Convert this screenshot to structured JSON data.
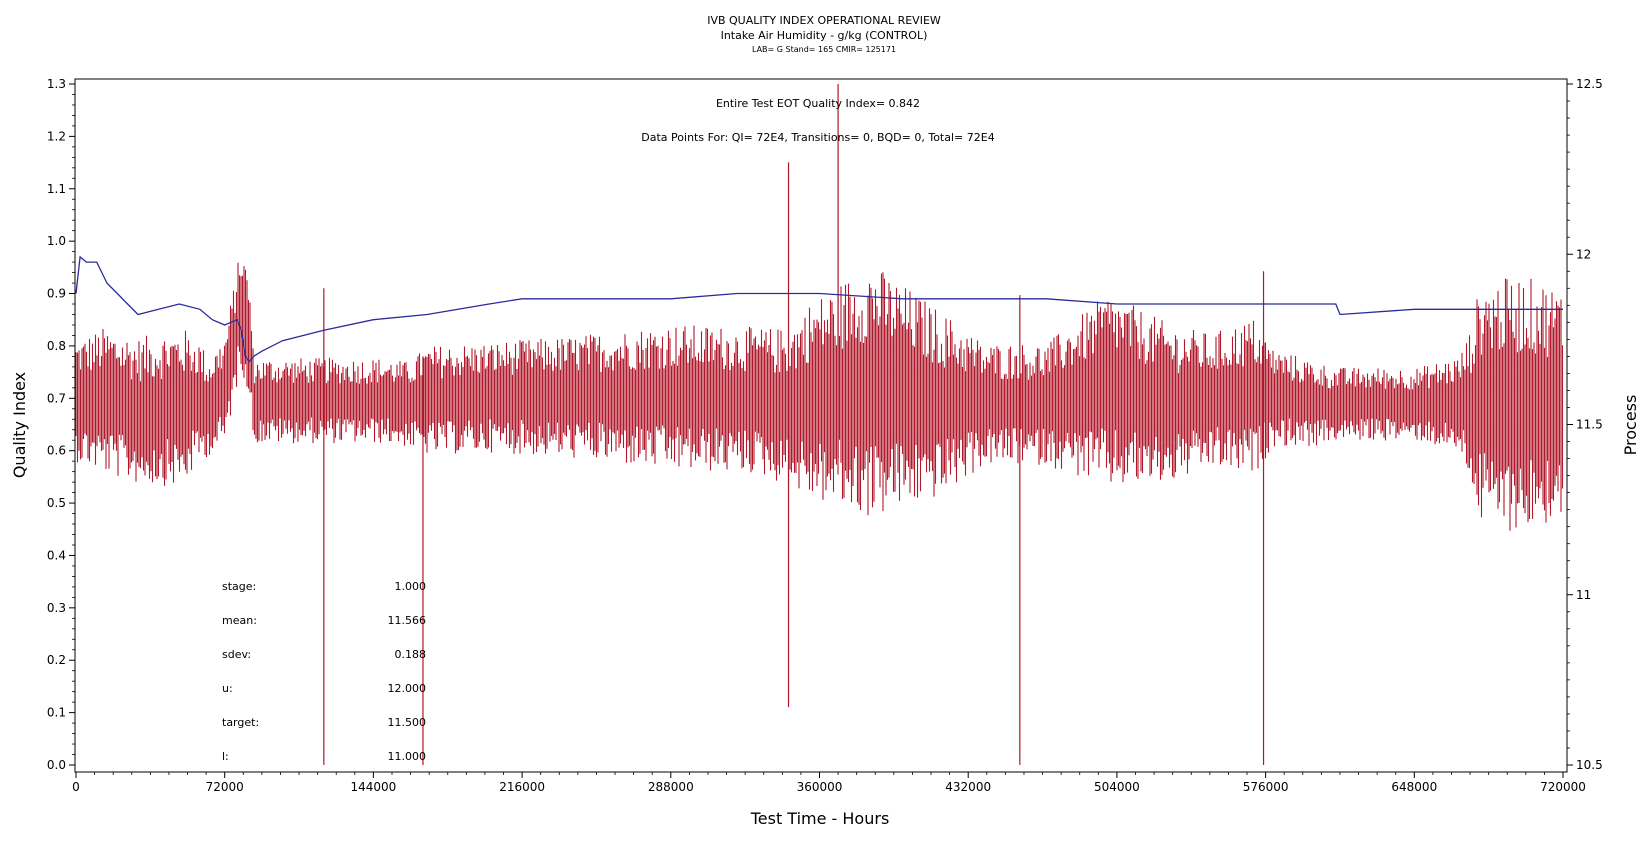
{
  "header": {
    "title": "IVB QUALITY INDEX OPERATIONAL REVIEW",
    "subtitle": "Intake Air Humidity - g/kg (CONTROL)",
    "meta_line": "LAB= G Stand= 165 CMIR= 125171"
  },
  "annotations": {
    "eot": "Entire Test EOT Quality Index=   0.842",
    "data_points": "Data Points For: QI=  72E4, Transitions=     0, BQD=     0, Total=  72E4"
  },
  "stats": [
    {
      "label": "stage:",
      "value": "1.000"
    },
    {
      "label": "mean:",
      "value": "11.566"
    },
    {
      "label": "sdev:",
      "value": "0.188"
    },
    {
      "label": "u:",
      "value": "12.000"
    },
    {
      "label": "target:",
      "value": "11.500"
    },
    {
      "label": "l:",
      "value": "11.000"
    }
  ],
  "colors": {
    "process": "#b0192b",
    "quality_index": "#2b2b9a",
    "axis": "#000000",
    "background": "#ffffff"
  },
  "chart_data": {
    "type": "line",
    "title": "IVB QUALITY INDEX OPERATIONAL REVIEW",
    "xlabel": "Test Time - Hours",
    "ylabel": "Quality Index",
    "y2label": "Process",
    "xlim": [
      0,
      720000
    ],
    "ylim": [
      0,
      1.3
    ],
    "y2lim": [
      10.5,
      12.5
    ],
    "x_ticks": [
      "0",
      "72000",
      "144000",
      "216000",
      "288000",
      "360000",
      "432000",
      "504000",
      "576000",
      "648000",
      "720000"
    ],
    "y_ticks": [
      "0.0",
      "0.1",
      "0.2",
      "0.3",
      "0.4",
      "0.5",
      "0.6",
      "0.7",
      "0.8",
      "0.9",
      "1.0",
      "1.1",
      "1.2",
      "1.3"
    ],
    "y2_ticks": [
      "10.5",
      "11",
      "11.5",
      "12",
      "12.5"
    ],
    "grid": false,
    "series": [
      {
        "axis": "left",
        "x": [
          0,
          2000,
          5000,
          10000,
          15000,
          20000,
          25000,
          30000,
          40000,
          50000,
          60000,
          66000,
          72000,
          78000,
          80000,
          82000,
          84000,
          86000,
          90000,
          100000,
          120000,
          144000,
          170000,
          200000,
          216000,
          250000,
          288000,
          320000,
          360000,
          400000,
          432000,
          470000,
          504000,
          540000,
          576000,
          600000,
          610000,
          612000,
          648000,
          690000,
          720000
        ],
        "values": [
          0.9,
          0.97,
          0.96,
          0.96,
          0.92,
          0.9,
          0.88,
          0.86,
          0.87,
          0.88,
          0.87,
          0.85,
          0.84,
          0.85,
          0.83,
          0.78,
          0.77,
          0.78,
          0.79,
          0.81,
          0.83,
          0.85,
          0.86,
          0.88,
          0.89,
          0.89,
          0.89,
          0.9,
          0.9,
          0.89,
          0.89,
          0.89,
          0.88,
          0.88,
          0.88,
          0.88,
          0.88,
          0.86,
          0.87,
          0.87,
          0.87
        ]
      },
      {
        "axis": "right",
        "stats_by_x": {
          "x": [
            0,
            14000,
            30000,
            52000,
            60000,
            64000,
            72000,
            80000,
            84000,
            86000,
            150000,
            160000,
            171000,
            200000,
            240000,
            288000,
            330000,
            345000,
            355000,
            385000,
            420000,
            440000,
            470000,
            500000,
            530000,
            550000,
            570000,
            580000,
            600000,
            610000,
            620000,
            650000,
            670000,
            675000,
            680000,
            700000,
            720000
          ],
          "mean": [
            11.57,
            11.57,
            11.54,
            11.55,
            11.57,
            11.55,
            11.6,
            11.85,
            11.75,
            11.57,
            11.57,
            11.56,
            11.57,
            11.58,
            11.58,
            11.58,
            11.57,
            11.55,
            11.57,
            11.6,
            11.56,
            11.56,
            11.56,
            11.6,
            11.56,
            11.57,
            11.58,
            11.58,
            11.56,
            11.56,
            11.56,
            11.56,
            11.56,
            11.56,
            11.56,
            11.56,
            11.56
          ],
          "spread": [
            0.1,
            0.12,
            0.12,
            0.13,
            0.1,
            0.08,
            0.09,
            0.1,
            0.1,
            0.07,
            0.07,
            0.07,
            0.09,
            0.09,
            0.1,
            0.12,
            0.12,
            0.13,
            0.16,
            0.21,
            0.15,
            0.1,
            0.1,
            0.16,
            0.13,
            0.11,
            0.13,
            0.08,
            0.07,
            0.06,
            0.06,
            0.06,
            0.08,
            0.12,
            0.2,
            0.21,
            0.19
          ]
        },
        "spikes": {
          "x": [
            120000,
            168000,
            345000,
            369000,
            457000,
            575000
          ],
          "low": [
            10.5,
            10.5,
            10.67,
            11.4,
            10.5,
            10.5
          ],
          "high": [
            11.9,
            11.7,
            12.27,
            12.5,
            11.88,
            11.95
          ]
        }
      }
    ]
  }
}
